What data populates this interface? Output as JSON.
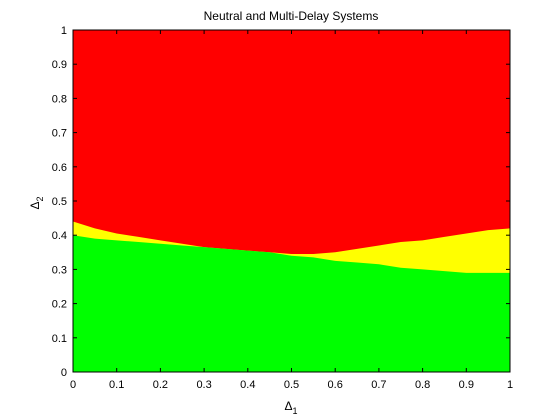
{
  "chart_data": {
    "type": "area",
    "title": "Neutral and Multi-Delay Systems",
    "xlabel": {
      "base": "Δ",
      "sub": "1"
    },
    "ylabel": {
      "base": "Δ",
      "sub": "2"
    },
    "xlim": [
      0,
      1
    ],
    "ylim": [
      0,
      1
    ],
    "xticks": [
      "0",
      "0.1",
      "0.2",
      "0.3",
      "0.4",
      "0.5",
      "0.6",
      "0.7",
      "0.8",
      "0.9",
      "1"
    ],
    "yticks": [
      "0",
      "0.1",
      "0.2",
      "0.3",
      "0.4",
      "0.5",
      "0.6",
      "0.7",
      "0.8",
      "0.9",
      "1"
    ],
    "grid": false,
    "legend": null,
    "colors": {
      "green": "#00ff00",
      "yellow": "#ffff00",
      "red": "#ff0000"
    },
    "regions": [
      {
        "color": "green",
        "upper_boundary": {
          "x": [
            0,
            0.05,
            0.1,
            0.15,
            0.2,
            0.25,
            0.3,
            0.35,
            0.4,
            0.45,
            0.5,
            0.55,
            0.6,
            0.65,
            0.7,
            0.75,
            0.8,
            0.85,
            0.9,
            0.95,
            1
          ],
          "y": [
            0.4,
            0.39,
            0.385,
            0.38,
            0.375,
            0.37,
            0.365,
            0.36,
            0.355,
            0.35,
            0.34,
            0.335,
            0.325,
            0.32,
            0.315,
            0.305,
            0.3,
            0.295,
            0.29,
            0.29,
            0.29
          ]
        }
      },
      {
        "color": "yellow",
        "upper_boundary": {
          "x": [
            0,
            0.05,
            0.1,
            0.15,
            0.2,
            0.25,
            0.3,
            0.35,
            0.4,
            0.45,
            0.5,
            0.55,
            0.6,
            0.65,
            0.7,
            0.75,
            0.8,
            0.85,
            0.9,
            0.95,
            1
          ],
          "y": [
            0.44,
            0.42,
            0.405,
            0.395,
            0.385,
            0.375,
            0.365,
            0.36,
            0.355,
            0.35,
            0.345,
            0.345,
            0.35,
            0.36,
            0.37,
            0.38,
            0.385,
            0.395,
            0.405,
            0.415,
            0.42
          ]
        }
      },
      {
        "color": "red",
        "upper_boundary": {
          "x": [
            0,
            1
          ],
          "y": [
            1,
            1
          ]
        }
      }
    ]
  }
}
